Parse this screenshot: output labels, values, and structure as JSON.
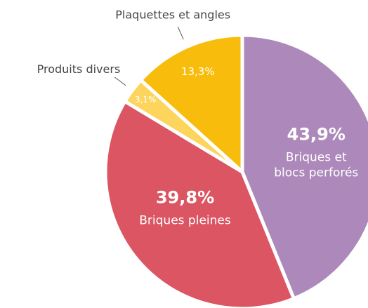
{
  "chart_data": {
    "type": "pie",
    "categories": [
      "Briques et blocs perforés",
      "Briques pleines",
      "Produits divers",
      "Plaquettes et angles"
    ],
    "values": [
      43.9,
      39.8,
      3.1,
      13.3
    ],
    "value_labels": [
      "43,9%",
      "39,8%",
      "3,1%",
      "13,3%"
    ],
    "colors": [
      "#ad89bb",
      "#db5563",
      "#fdd45c",
      "#f8bc0c"
    ]
  }
}
